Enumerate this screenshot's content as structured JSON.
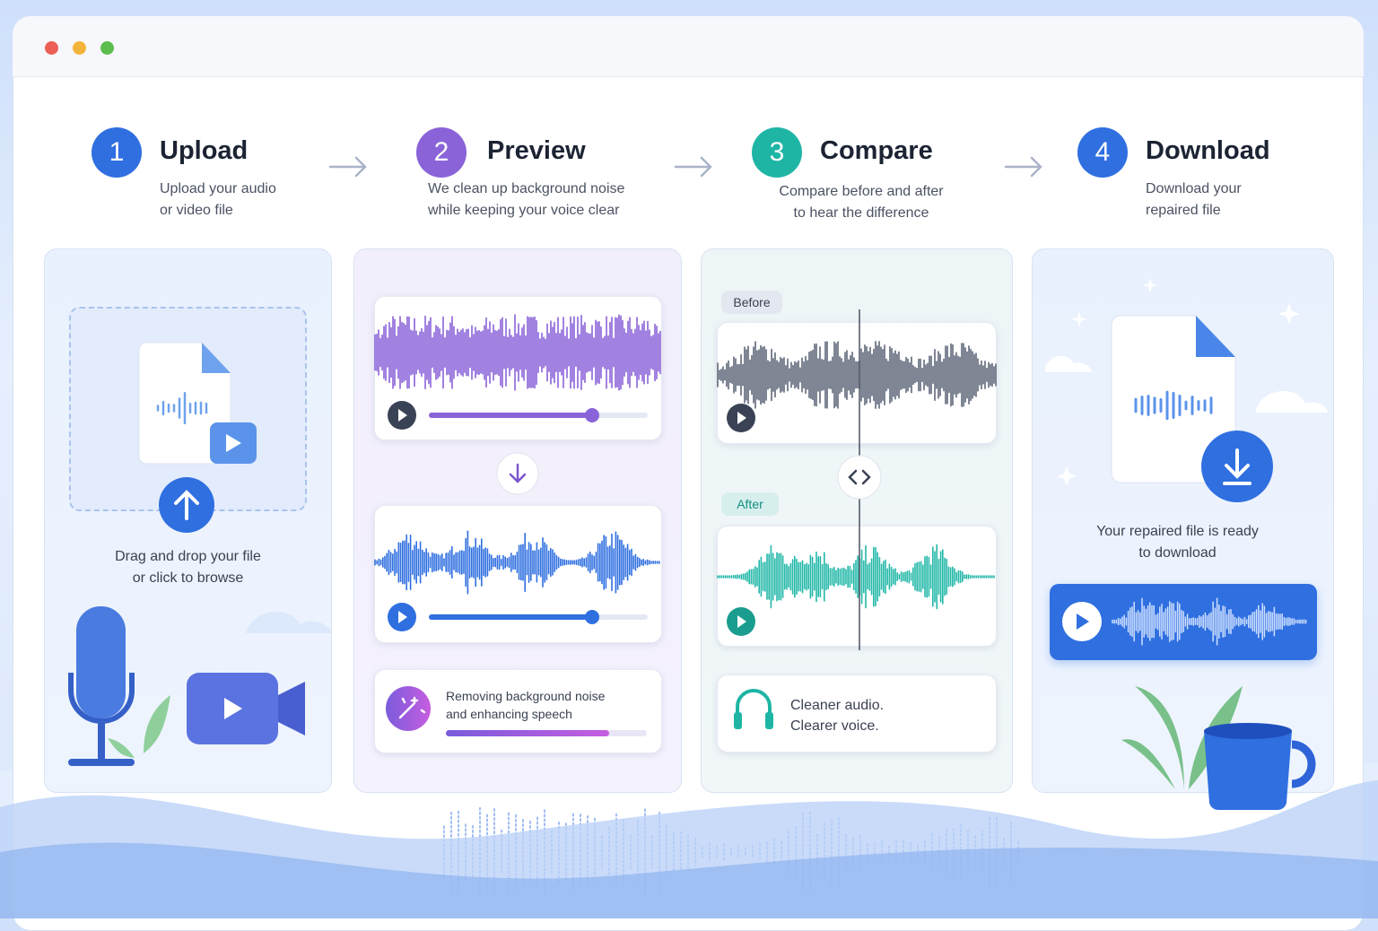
{
  "steps": [
    {
      "number": 1,
      "title": "Upload",
      "description": [
        "Upload your audio",
        "or video file"
      ]
    },
    {
      "number": 2,
      "title": "Preview",
      "description": [
        "We clean up background noise",
        "while keeping your voice clear"
      ]
    },
    {
      "number": 3,
      "title": "Compare",
      "description": [
        "Compare before and after",
        "to hear the difference"
      ]
    },
    {
      "number": 4,
      "title": "Download",
      "description": [
        "Download your",
        "repaired file"
      ]
    }
  ],
  "upload_panel": {
    "prompt": [
      "Drag and drop your file",
      "or click to browse"
    ]
  },
  "preview_panel": {
    "status": [
      "Removing background noise",
      "and enhancing speech"
    ]
  },
  "compare_panel": {
    "before_label": "Before",
    "after_label": "After",
    "caption": [
      "Cleaner audio.",
      "Clearer voice."
    ]
  },
  "download_panel": {
    "message": [
      "Your repaired file is ready",
      "to download"
    ]
  }
}
